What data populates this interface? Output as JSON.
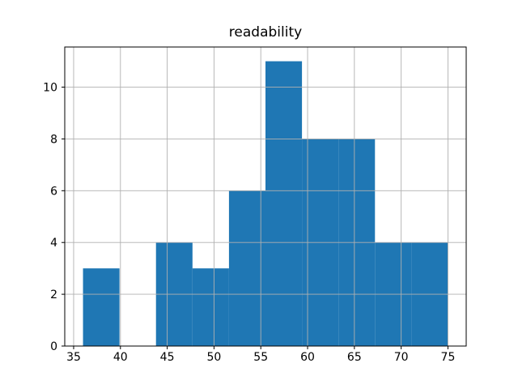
{
  "chart_data": {
    "type": "bar",
    "subtype": "histogram",
    "title": "readability",
    "xlabel": "",
    "ylabel": "",
    "bin_edges": [
      36.0,
      39.9,
      43.8,
      47.7,
      51.6,
      55.5,
      59.4,
      63.3,
      67.2,
      71.1,
      75.0
    ],
    "counts": [
      3,
      0,
      4,
      3,
      6,
      11,
      8,
      8,
      4,
      4
    ],
    "xticks": [
      35,
      40,
      45,
      50,
      55,
      60,
      65,
      70,
      75
    ],
    "yticks": [
      0,
      2,
      4,
      6,
      8,
      10
    ],
    "xlim": [
      34.05,
      76.95
    ],
    "ylim": [
      0,
      11.55
    ],
    "grid": true,
    "grid_above_bars": true,
    "legend": null,
    "colors": {
      "bar": "#1f77b4",
      "grid": "#b0b0b0",
      "spine": "#000000",
      "tick": "#000000",
      "text": "#000000",
      "background": "#ffffff"
    }
  }
}
